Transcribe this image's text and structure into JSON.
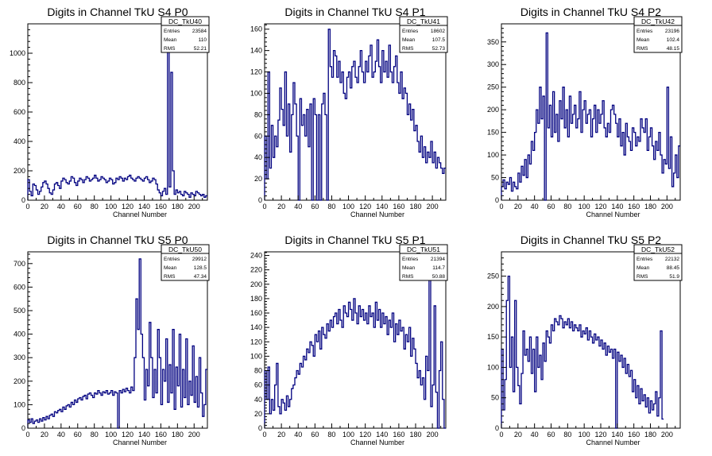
{
  "colors": {
    "histogram": "#000080",
    "axis": "#000000",
    "background": "#ffffff"
  },
  "stats_labels": {
    "entries": "Entries",
    "mean": "Mean",
    "rms": "RMS"
  },
  "chart_data": [
    {
      "type": "histogram",
      "title": "Digits in Channel TkU S4 P0",
      "xlabel": "Channel Number",
      "xlim": [
        0,
        216
      ],
      "ylim": [
        0,
        1200
      ],
      "xticks": [
        0,
        20,
        40,
        60,
        80,
        100,
        120,
        140,
        160,
        180,
        200
      ],
      "yticks": [
        0,
        200,
        400,
        600,
        800,
        1000
      ],
      "stats": {
        "name": "DC_TkU40",
        "entries": "23584",
        "mean": "110",
        "rms": "52.21"
      },
      "bin_width": 2,
      "values": [
        140,
        60,
        30,
        110,
        100,
        70,
        40,
        60,
        90,
        120,
        130,
        110,
        80,
        50,
        40,
        70,
        110,
        120,
        100,
        80,
        130,
        150,
        140,
        120,
        110,
        130,
        160,
        150,
        120,
        100,
        130,
        150,
        140,
        120,
        140,
        160,
        150,
        130,
        140,
        150,
        170,
        150,
        130,
        140,
        160,
        150,
        140,
        120,
        130,
        150,
        140,
        110,
        120,
        150,
        140,
        160,
        150,
        130,
        150,
        140,
        160,
        170,
        150,
        140,
        130,
        150,
        160,
        150,
        140,
        130,
        150,
        160,
        140,
        120,
        130,
        150,
        140,
        110,
        70,
        50,
        30,
        60,
        80,
        40,
        1130,
        90,
        870,
        200,
        40,
        70,
        50,
        60,
        40,
        30,
        60,
        50,
        40,
        20,
        50,
        40,
        30,
        60,
        50,
        40,
        30,
        40,
        20,
        30
      ]
    },
    {
      "type": "histogram",
      "title": "Digits in Channel TkU S4 P1",
      "xlabel": "Channel Number",
      "xlim": [
        0,
        216
      ],
      "ylim": [
        0,
        165
      ],
      "xticks": [
        0,
        20,
        40,
        60,
        80,
        100,
        120,
        140,
        160,
        180,
        200
      ],
      "yticks": [
        0,
        20,
        40,
        60,
        80,
        100,
        120,
        140,
        160
      ],
      "stats": {
        "name": "DC_TkU41",
        "entries": "18602",
        "mean": "107.5",
        "rms": "52.73"
      },
      "bin_width": 2,
      "values": [
        60,
        20,
        120,
        30,
        70,
        40,
        60,
        50,
        75,
        105,
        85,
        70,
        120,
        60,
        90,
        45,
        80,
        110,
        90,
        60,
        0,
        95,
        70,
        80,
        60,
        85,
        50,
        90,
        0,
        95,
        80,
        0,
        80,
        0,
        90,
        100,
        80,
        0,
        160,
        125,
        115,
        140,
        135,
        115,
        130,
        110,
        120,
        100,
        95,
        115,
        120,
        105,
        125,
        130,
        115,
        110,
        125,
        140,
        120,
        110,
        130,
        120,
        135,
        145,
        115,
        120,
        130,
        150,
        125,
        110,
        140,
        120,
        130,
        115,
        145,
        120,
        110,
        125,
        135,
        110,
        100,
        120,
        95,
        105,
        100,
        80,
        90,
        75,
        85,
        65,
        70,
        55,
        45,
        60,
        40,
        50,
        35,
        45,
        40,
        55,
        35,
        45,
        30,
        40,
        35,
        30,
        25,
        30
      ]
    },
    {
      "type": "histogram",
      "title": "Digits in Channel TkU S4 P2",
      "xlabel": "Channel Number",
      "xlim": [
        0,
        216
      ],
      "ylim": [
        0,
        390
      ],
      "xticks": [
        0,
        20,
        40,
        60,
        80,
        100,
        120,
        140,
        160,
        180,
        200
      ],
      "yticks": [
        0,
        50,
        100,
        150,
        200,
        250,
        300,
        350
      ],
      "stats": {
        "name": "DC_TkU42",
        "entries": "23196",
        "mean": "102.4",
        "rms": "48.15"
      },
      "bin_width": 2,
      "values": [
        30,
        45,
        25,
        40,
        35,
        50,
        20,
        40,
        30,
        25,
        60,
        40,
        75,
        55,
        90,
        50,
        100,
        80,
        130,
        110,
        150,
        200,
        170,
        250,
        180,
        230,
        0,
        370,
        160,
        210,
        140,
        240,
        150,
        190,
        130,
        220,
        180,
        250,
        160,
        200,
        140,
        230,
        170,
        190,
        210,
        160,
        180,
        240,
        150,
        200,
        220,
        170,
        190,
        200,
        140,
        180,
        210,
        150,
        200,
        170,
        190,
        220,
        160,
        140,
        170,
        150,
        200,
        210,
        190,
        170,
        140,
        180,
        120,
        150,
        100,
        170,
        140,
        130,
        110,
        160,
        150,
        120,
        140,
        130,
        180,
        160,
        150,
        180,
        110,
        140,
        160,
        120,
        90,
        130,
        110,
        150,
        100,
        60,
        90,
        80,
        250,
        70,
        140,
        30,
        60,
        100,
        50,
        120
      ]
    },
    {
      "type": "histogram",
      "title": "Digits in Channel TkU S5 P0",
      "xlabel": "Channel Number",
      "xlim": [
        0,
        216
      ],
      "ylim": [
        0,
        750
      ],
      "xticks": [
        0,
        20,
        40,
        60,
        80,
        100,
        120,
        140,
        160,
        180,
        200
      ],
      "yticks": [
        0,
        100,
        200,
        300,
        400,
        500,
        600,
        700
      ],
      "stats": {
        "name": "DC_TkU50",
        "entries": "29912",
        "mean": "128.5",
        "rms": "47.34"
      },
      "bin_width": 2,
      "values": [
        35,
        25,
        40,
        20,
        30,
        35,
        25,
        40,
        30,
        45,
        35,
        50,
        40,
        55,
        60,
        50,
        70,
        65,
        75,
        80,
        70,
        90,
        80,
        95,
        100,
        90,
        110,
        100,
        120,
        110,
        125,
        130,
        120,
        135,
        140,
        125,
        145,
        150,
        140,
        130,
        150,
        145,
        160,
        150,
        140,
        155,
        150,
        160,
        145,
        150,
        160,
        140,
        155,
        150,
        0,
        160,
        150,
        165,
        155,
        170,
        160,
        150,
        175,
        160,
        300,
        550,
        420,
        720,
        400,
        300,
        120,
        250,
        180,
        450,
        300,
        130,
        250,
        150,
        420,
        300,
        100,
        250,
        200,
        380,
        110,
        270,
        150,
        420,
        80,
        260,
        180,
        400,
        90,
        250,
        130,
        380,
        100,
        200,
        140,
        350,
        110,
        220,
        90,
        300,
        150,
        50,
        100,
        250
      ]
    },
    {
      "type": "histogram",
      "title": "Digits in Channel TkU S5 P1",
      "xlabel": "Channel Number",
      "xlim": [
        0,
        216
      ],
      "ylim": [
        0,
        245
      ],
      "xticks": [
        0,
        20,
        40,
        60,
        80,
        100,
        120,
        140,
        160,
        180,
        200
      ],
      "yticks": [
        0,
        20,
        40,
        60,
        80,
        100,
        120,
        140,
        160,
        180,
        200,
        220,
        240
      ],
      "stats": {
        "name": "DC_TkU51",
        "entries": "21394",
        "mean": "114.7",
        "rms": "50.88"
      },
      "bin_width": 2,
      "values": [
        80,
        40,
        85,
        20,
        40,
        25,
        60,
        90,
        30,
        20,
        40,
        35,
        25,
        45,
        30,
        40,
        55,
        60,
        70,
        80,
        75,
        90,
        85,
        100,
        95,
        110,
        105,
        120,
        115,
        100,
        130,
        120,
        135,
        110,
        140,
        130,
        125,
        145,
        135,
        150,
        140,
        155,
        160,
        145,
        165,
        150,
        140,
        170,
        160,
        155,
        175,
        165,
        150,
        180,
        160,
        145,
        170,
        155,
        165,
        150,
        160,
        145,
        170,
        155,
        160,
        140,
        175,
        150,
        165,
        140,
        160,
        145,
        155,
        130,
        150,
        140,
        160,
        120,
        145,
        130,
        150,
        135,
        140,
        110,
        130,
        120,
        140,
        100,
        125,
        110,
        90,
        70,
        80,
        60,
        70,
        40,
        100,
        80,
        210,
        30,
        60,
        170,
        50,
        0,
        80,
        120,
        40,
        0
      ]
    },
    {
      "type": "histogram",
      "title": "Digits in Channel TkU S5 P2",
      "xlabel": "Channel Number",
      "xlim": [
        0,
        216
      ],
      "ylim": [
        0,
        290
      ],
      "xticks": [
        0,
        20,
        40,
        60,
        80,
        100,
        120,
        140,
        160,
        180,
        200
      ],
      "yticks": [
        0,
        50,
        100,
        150,
        200,
        250
      ],
      "stats": {
        "name": "DC_TkU52",
        "entries": "22132",
        "mean": "88.45",
        "rms": "51.9"
      },
      "bin_width": 2,
      "values": [
        130,
        30,
        80,
        210,
        250,
        100,
        150,
        60,
        210,
        100,
        70,
        40,
        90,
        160,
        120,
        130,
        110,
        150,
        90,
        130,
        60,
        150,
        100,
        120,
        80,
        140,
        110,
        160,
        150,
        140,
        170,
        160,
        180,
        175,
        170,
        185,
        180,
        165,
        175,
        170,
        180,
        165,
        175,
        160,
        170,
        165,
        160,
        170,
        150,
        160,
        155,
        165,
        145,
        160,
        150,
        140,
        155,
        145,
        150,
        135,
        145,
        130,
        140,
        120,
        135,
        125,
        130,
        115,
        130,
        0,
        125,
        110,
        120,
        100,
        115,
        90,
        105,
        85,
        95,
        60,
        80,
        50,
        70,
        40,
        65,
        45,
        55,
        35,
        50,
        25,
        45,
        30,
        40,
        60,
        20,
        50,
        160,
        15
      ]
    }
  ]
}
